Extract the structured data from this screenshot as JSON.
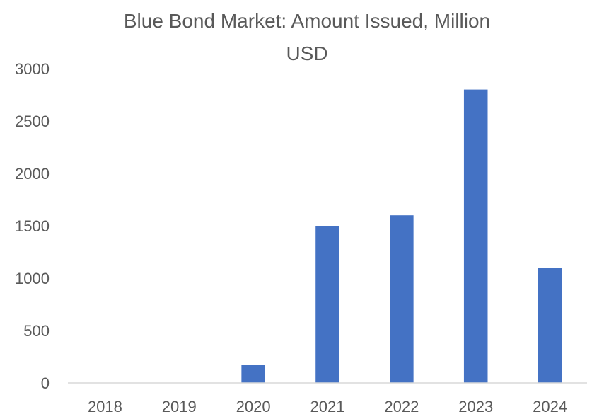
{
  "chart_data": {
    "type": "bar",
    "title_lines": [
      "Blue Bond Market: Amount Issued, Million",
      "USD"
    ],
    "categories": [
      "2018",
      "2019",
      "2020",
      "2021",
      "2022",
      "2023",
      "2024"
    ],
    "values": [
      0,
      0,
      170,
      1500,
      1600,
      2800,
      1100
    ],
    "yticks": [
      "0",
      "500",
      "1000",
      "1500",
      "2000",
      "2500",
      "3000"
    ],
    "ylim": [
      0,
      3000
    ],
    "grid": false,
    "legend": "none",
    "bar_color": "#4472C4",
    "axis_color": "#D9D9D9",
    "text_color": "#595959"
  }
}
